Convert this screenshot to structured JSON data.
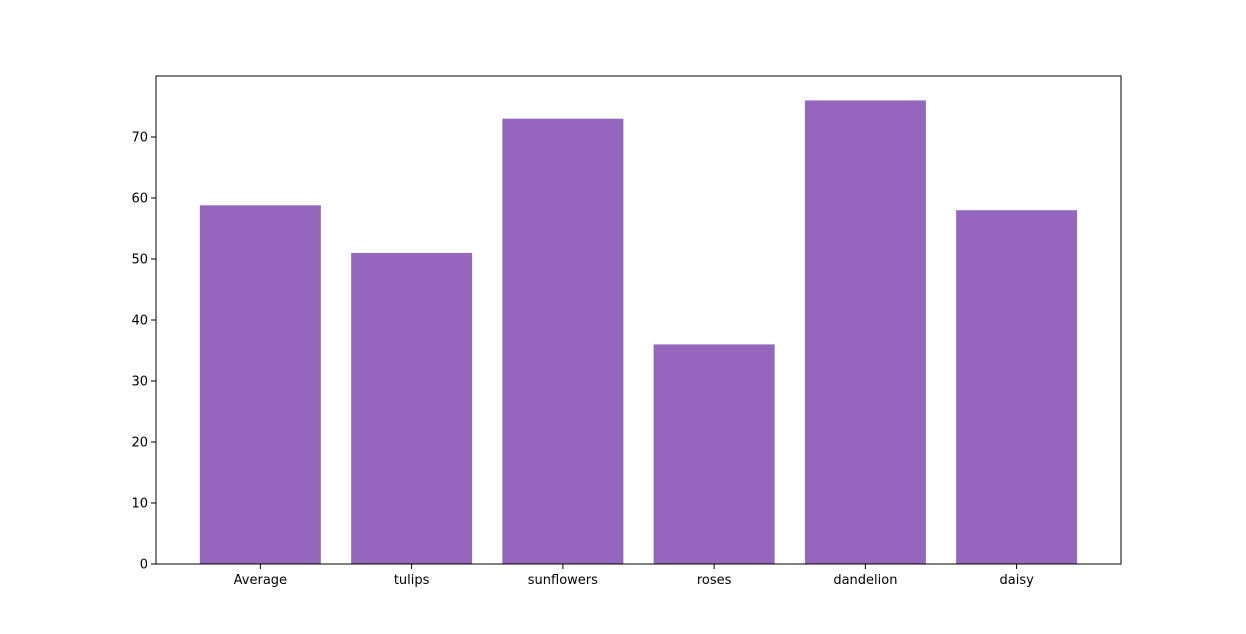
{
  "chart_data": {
    "type": "bar",
    "categories": [
      "Average",
      "tulips",
      "sunflowers",
      "roses",
      "dandelion",
      "daisy"
    ],
    "values": [
      58.8,
      51,
      73,
      36,
      76,
      58
    ],
    "title": "",
    "xlabel": "",
    "ylabel": "",
    "ylim": [
      0,
      80
    ],
    "yticks": [
      0,
      10,
      20,
      30,
      40,
      50,
      60,
      70
    ],
    "bar_color": "#9467bd",
    "grid": false,
    "legend": "none"
  }
}
